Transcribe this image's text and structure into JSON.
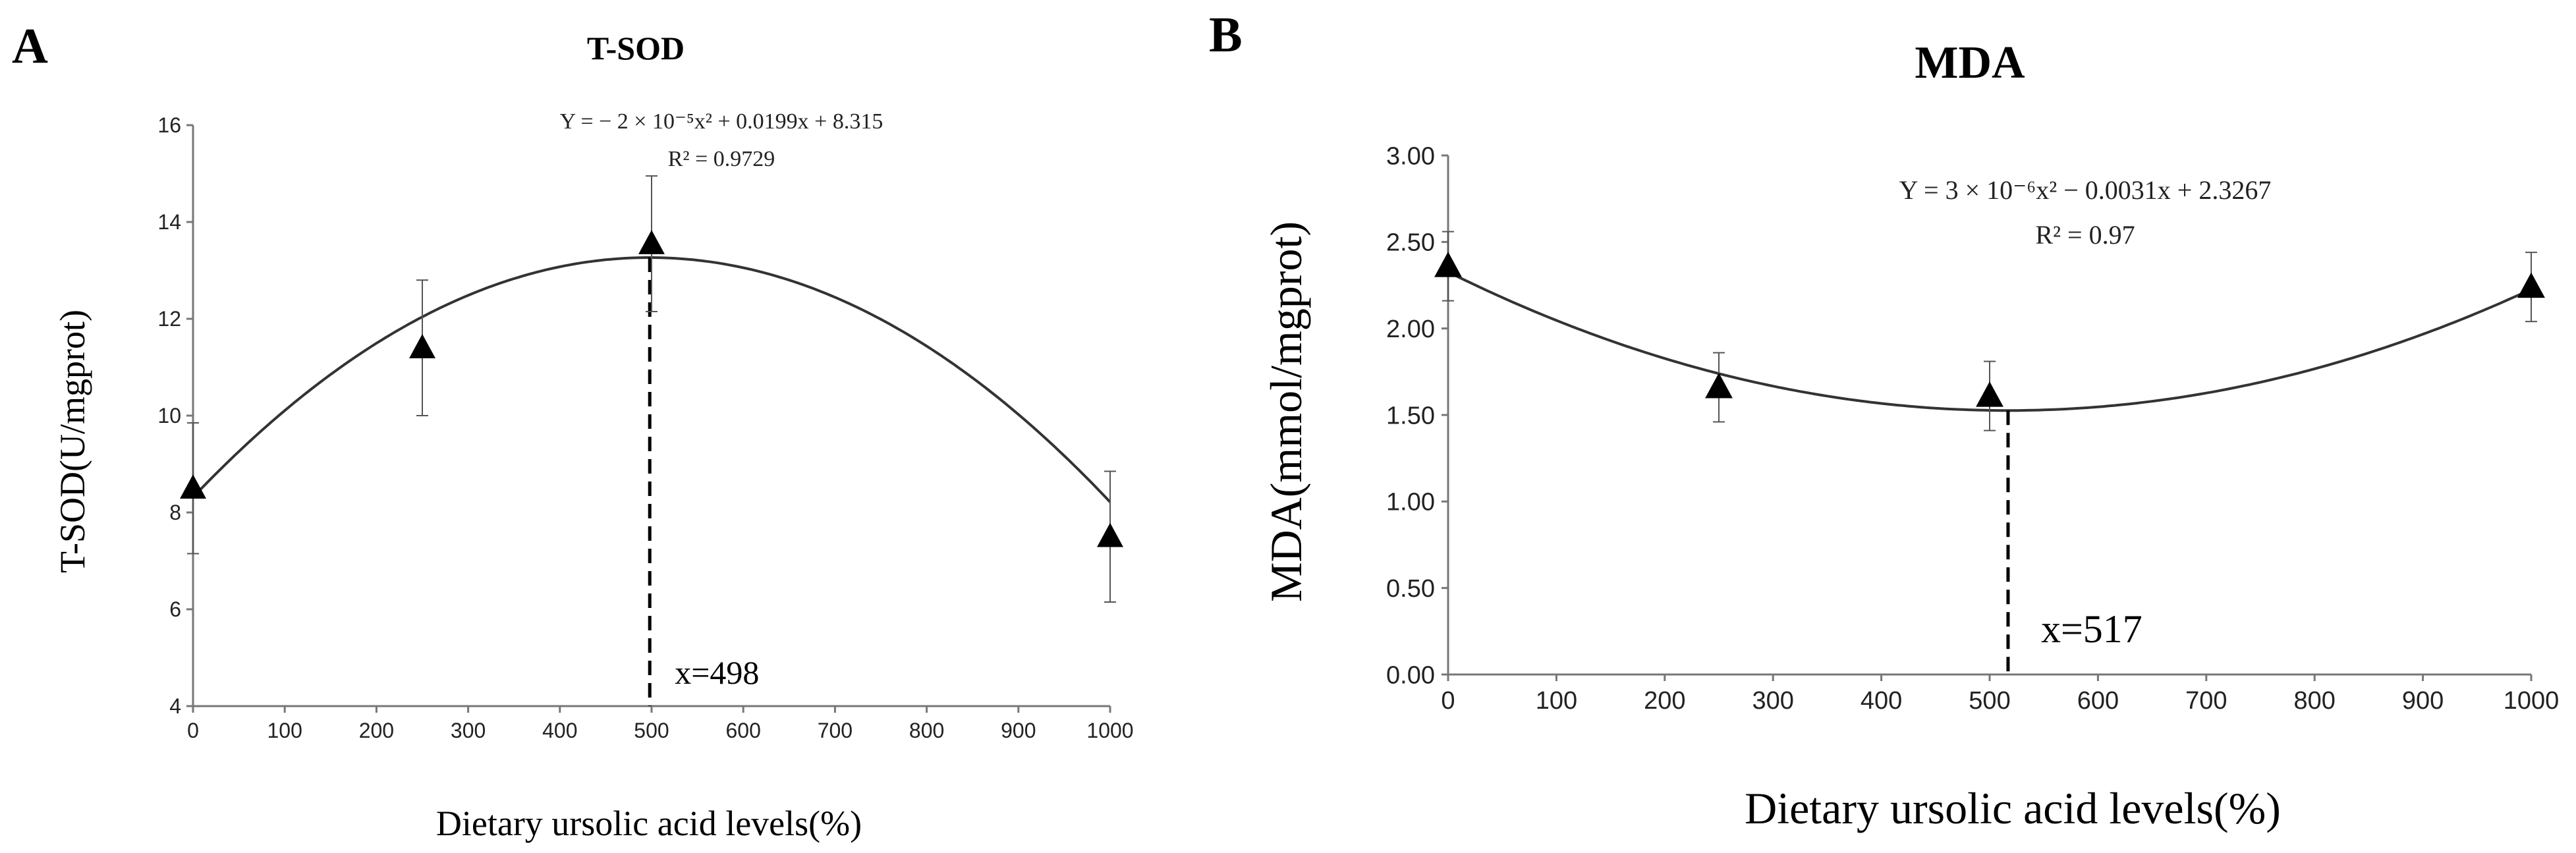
{
  "chart_data": [
    {
      "panel": "A",
      "type": "scatter",
      "title": "T-SOD",
      "xlabel": "Dietary ursolic acid levels(%)",
      "ylabel": "T-SOD(U/mgprot)",
      "xlim": [
        0,
        1000
      ],
      "ylim": [
        4,
        16
      ],
      "xticks": [
        "0",
        "100",
        "200",
        "300",
        "400",
        "500",
        "600",
        "700",
        "800",
        "900",
        "1000"
      ],
      "yticks": [
        "4",
        "6",
        "8",
        "10",
        "12",
        "14",
        "16"
      ],
      "ytick_values": [
        4,
        6,
        8,
        10,
        12,
        14,
        16
      ],
      "series": [
        {
          "name": "T-SOD",
          "marker": "triangle",
          "x": [
            0,
            250,
            500,
            1000
          ],
          "y": [
            8.5,
            11.4,
            13.55,
            7.5
          ],
          "err": [
            1.35,
            1.4,
            1.4,
            1.35
          ]
        }
      ],
      "fit": {
        "a": -2e-05,
        "b": 0.0199,
        "c": 8.315,
        "x_from": 0,
        "x_to": 1000
      },
      "equation": "Y = − 2 × 10⁻⁵x² + 0.0199x + 8.315",
      "r2": "R² = 0.9729",
      "vline": {
        "x": 498,
        "label": "x=498"
      },
      "grid": false
    },
    {
      "panel": "B",
      "type": "scatter",
      "title": "MDA",
      "xlabel": "Dietary ursolic acid levels(%)",
      "ylabel": "MDA(mmol/mgprot)",
      "xlim": [
        0,
        1000
      ],
      "ylim": [
        0,
        3
      ],
      "xticks": [
        "0",
        "100",
        "200",
        "300",
        "400",
        "500",
        "600",
        "700",
        "800",
        "900",
        "1000"
      ],
      "yticks": [
        "0.00",
        "0.50",
        "1.00",
        "1.50",
        "2.00",
        "2.50",
        "3.00"
      ],
      "ytick_values": [
        0,
        0.5,
        1,
        1.5,
        2,
        2.5,
        3
      ],
      "series": [
        {
          "name": "MDA",
          "marker": "triangle",
          "x": [
            0,
            250,
            500,
            1000
          ],
          "y": [
            2.36,
            1.66,
            1.61,
            2.24
          ],
          "err": [
            0.2,
            0.2,
            0.2,
            0.2
          ]
        }
      ],
      "fit": {
        "a": 3e-06,
        "b": -0.0031,
        "c": 2.3267,
        "x_from": 0,
        "x_to": 1000
      },
      "equation": "Y = 3 × 10⁻⁶x² − 0.0031x + 2.3267",
      "r2": "R² = 0.97",
      "vline": {
        "x": 517,
        "label": "x=517"
      },
      "grid": false
    }
  ]
}
